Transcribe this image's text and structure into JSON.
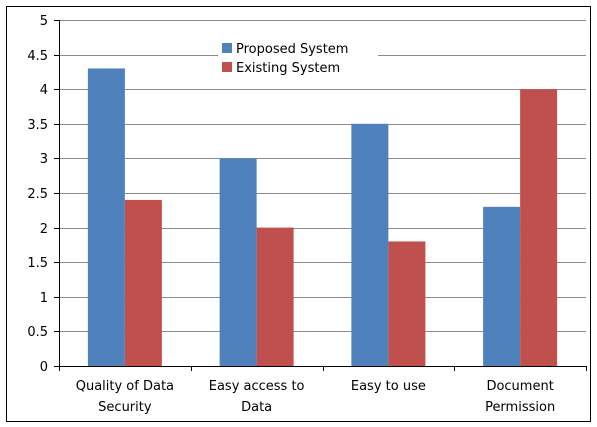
{
  "chart_data": {
    "type": "bar",
    "categories": [
      [
        "Quality of Data",
        "Security"
      ],
      [
        "Easy access to",
        "Data"
      ],
      [
        "Easy to use"
      ],
      [
        "Document",
        "Permission"
      ]
    ],
    "series": [
      {
        "name": "Proposed System",
        "color": "#4f81bd",
        "values": [
          4.3,
          3.0,
          3.5,
          2.3
        ]
      },
      {
        "name": "Existing System",
        "color": "#c0504d",
        "values": [
          2.4,
          2.0,
          1.8,
          4.0
        ]
      }
    ],
    "ylim": [
      0,
      5
    ],
    "yticks": [
      "0",
      "0.5",
      "1",
      "1.5",
      "2",
      "2.5",
      "3",
      "3.5",
      "4",
      "4.5",
      "5"
    ],
    "grid": true,
    "legend": "top-center",
    "title": "",
    "xlabel": "",
    "ylabel": ""
  }
}
